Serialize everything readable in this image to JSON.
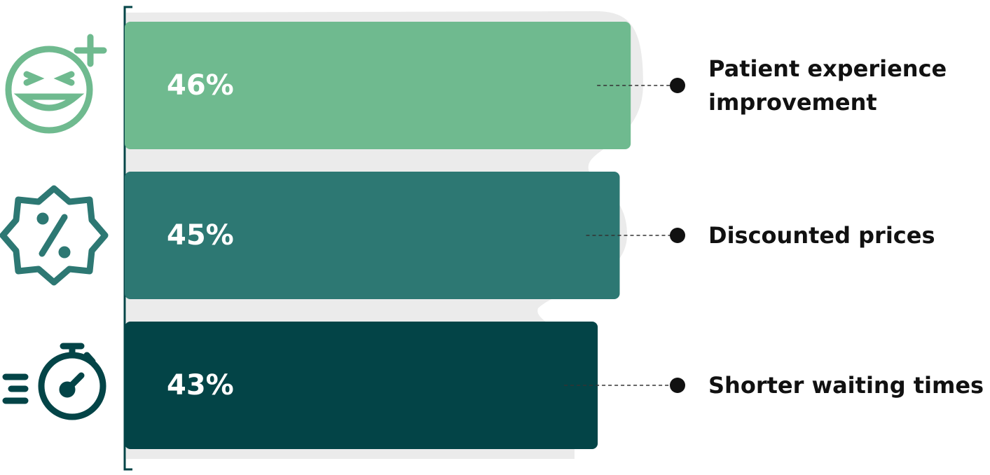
{
  "chart_data": {
    "type": "bar",
    "orientation": "horizontal",
    "categories": [
      "Patient experience improvement",
      "Discounted prices",
      "Shorter waiting times"
    ],
    "values": [
      46,
      45,
      43
    ],
    "value_labels": [
      "46%",
      "45%",
      "43%"
    ],
    "icons": [
      "smiley-plus-icon",
      "discount-badge-icon",
      "stopwatch-icon"
    ],
    "colors": [
      "#6fba8f",
      "#2d7873",
      "#034447"
    ],
    "grid": false,
    "legend": "none"
  }
}
